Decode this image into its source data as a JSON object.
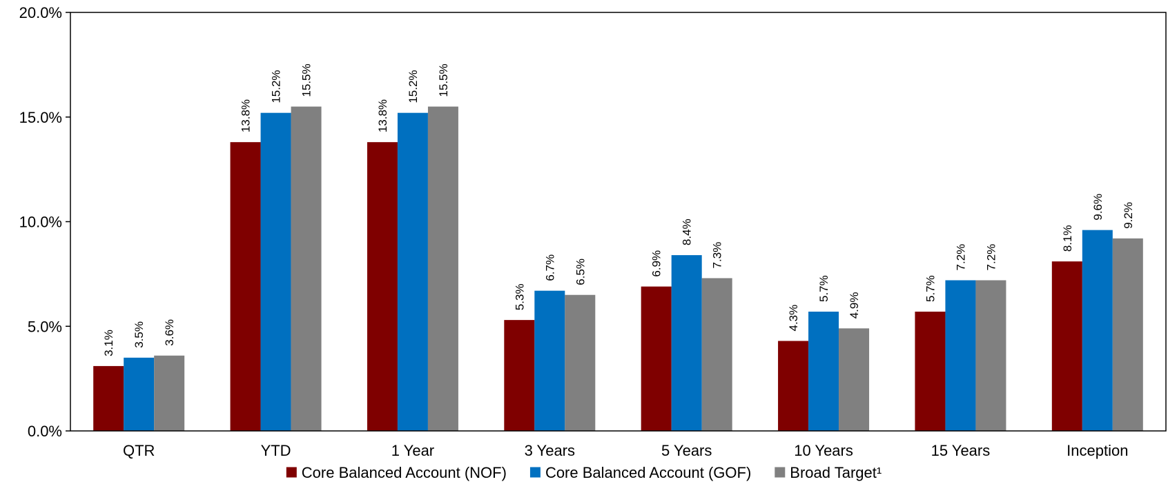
{
  "chart_data": {
    "type": "bar",
    "title": "",
    "xlabel": "",
    "ylabel": "",
    "ylim": [
      0,
      20
    ],
    "y_ticks": [
      0,
      5,
      10,
      15,
      20
    ],
    "y_tick_labels": [
      "0.0%",
      "5.0%",
      "10.0%",
      "15.0%",
      "20.0%"
    ],
    "value_format": "percent_1dp",
    "grid": false,
    "legend_position": "bottom",
    "categories": [
      "QTR",
      "YTD",
      "1 Year",
      "3 Years",
      "5 Years",
      "10 Years",
      "15 Years",
      "Inception"
    ],
    "series": [
      {
        "name": "Core Balanced Account (NOF)",
        "color": "#7f0000",
        "values": [
          3.1,
          13.8,
          13.8,
          5.3,
          6.9,
          4.3,
          5.7,
          8.1
        ],
        "labels": [
          "3.1%",
          "13.8%",
          "13.8%",
          "5.3%",
          "6.9%",
          "4.3%",
          "5.7%",
          "8.1%"
        ]
      },
      {
        "name": "Core Balanced Account (GOF)",
        "color": "#0070c0",
        "values": [
          3.5,
          15.2,
          15.2,
          6.7,
          8.4,
          5.7,
          7.2,
          9.6
        ],
        "labels": [
          "3.5%",
          "15.2%",
          "15.2%",
          "6.7%",
          "8.4%",
          "5.7%",
          "7.2%",
          "9.6%"
        ]
      },
      {
        "name": "Broad Target¹",
        "color": "#808080",
        "values": [
          3.6,
          15.5,
          15.5,
          6.5,
          7.3,
          4.9,
          7.2,
          9.2
        ],
        "labels": [
          "3.6%",
          "15.5%",
          "15.5%",
          "6.5%",
          "7.3%",
          "4.9%",
          "7.2%",
          "9.2%"
        ]
      }
    ]
  }
}
